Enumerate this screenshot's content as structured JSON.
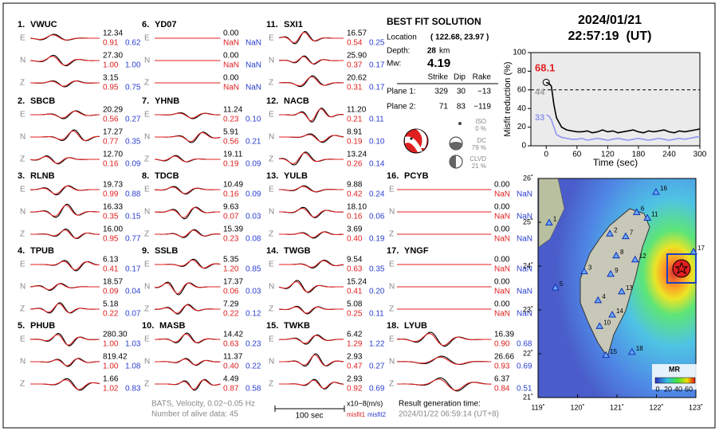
{
  "waveforms": {
    "stations": [
      {
        "number": "1.",
        "name": "VWUC",
        "components": [
          {
            "label": "E",
            "amplitude": "12.34",
            "misfit1": "0.91",
            "misfit2": "0.62"
          },
          {
            "label": "N",
            "amplitude": "27.30",
            "misfit1": "1.00",
            "misfit2": "1.00"
          },
          {
            "label": "Z",
            "amplitude": "3.15",
            "misfit1": "0.95",
            "misfit2": "0.75"
          }
        ]
      },
      {
        "number": "2.",
        "name": "SBCB",
        "components": [
          {
            "label": "E",
            "amplitude": "20.29",
            "misfit1": "0.56",
            "misfit2": "0.27"
          },
          {
            "label": "N",
            "amplitude": "17.27",
            "misfit1": "0.77",
            "misfit2": "0.35"
          },
          {
            "label": "Z",
            "amplitude": "12.70",
            "misfit1": "0.16",
            "misfit2": "0.09"
          }
        ]
      },
      {
        "number": "3.",
        "name": "RLNB",
        "components": [
          {
            "label": "E",
            "amplitude": "19.73",
            "misfit1": "0.99",
            "misfit2": "0.88"
          },
          {
            "label": "N",
            "amplitude": "16.33",
            "misfit1": "0.35",
            "misfit2": "0.15"
          },
          {
            "label": "Z",
            "amplitude": "16.00",
            "misfit1": "0.95",
            "misfit2": "0.77"
          }
        ]
      },
      {
        "number": "4.",
        "name": "TPUB",
        "components": [
          {
            "label": "E",
            "amplitude": "6.13",
            "misfit1": "0.41",
            "misfit2": "0.17"
          },
          {
            "label": "N",
            "amplitude": "18.57",
            "misfit1": "0.09",
            "misfit2": "0.04"
          },
          {
            "label": "Z",
            "amplitude": "5.18",
            "misfit1": "0.22",
            "misfit2": "0.07"
          }
        ]
      },
      {
        "number": "5.",
        "name": "PHUB",
        "components": [
          {
            "label": "E",
            "amplitude": "280.30",
            "misfit1": "1.00",
            "misfit2": "1.03"
          },
          {
            "label": "N",
            "amplitude": "819.42",
            "misfit1": "1.00",
            "misfit2": "1.08"
          },
          {
            "label": "Z",
            "amplitude": "1.66",
            "misfit1": "1.02",
            "misfit2": "0.83"
          }
        ]
      },
      {
        "number": "6.",
        "name": "YD07",
        "components": [
          {
            "label": "E",
            "amplitude": "0.00",
            "misfit1": "NaN",
            "misfit2": "NaN"
          },
          {
            "label": "N",
            "amplitude": "0.00",
            "misfit1": "NaN",
            "misfit2": "NaN"
          },
          {
            "label": "Z",
            "amplitude": "0.00",
            "misfit1": "NaN",
            "misfit2": "NaN"
          }
        ]
      },
      {
        "number": "7.",
        "name": "YHNB",
        "components": [
          {
            "label": "E",
            "amplitude": "11.24",
            "misfit1": "0.23",
            "misfit2": "0.10"
          },
          {
            "label": "N",
            "amplitude": "5.91",
            "misfit1": "0.56",
            "misfit2": "0.21"
          },
          {
            "label": "Z",
            "amplitude": "19.11",
            "misfit1": "0.19",
            "misfit2": "0.09"
          }
        ]
      },
      {
        "number": "8.",
        "name": "TDCB",
        "components": [
          {
            "label": "E",
            "amplitude": "10.49",
            "misfit1": "0.16",
            "misfit2": "0.09"
          },
          {
            "label": "N",
            "amplitude": "9.63",
            "misfit1": "0.07",
            "misfit2": "0.03"
          },
          {
            "label": "Z",
            "amplitude": "15.39",
            "misfit1": "0.23",
            "misfit2": "0.08"
          }
        ]
      },
      {
        "number": "9.",
        "name": "SSLB",
        "components": [
          {
            "label": "E",
            "amplitude": "5.35",
            "misfit1": "1.20",
            "misfit2": "0.85"
          },
          {
            "label": "N",
            "amplitude": "17.37",
            "misfit1": "0.06",
            "misfit2": "0.03"
          },
          {
            "label": "Z",
            "amplitude": "7.29",
            "misfit1": "0.22",
            "misfit2": "0.12"
          }
        ]
      },
      {
        "number": "10.",
        "name": "MASB",
        "components": [
          {
            "label": "E",
            "amplitude": "14.42",
            "misfit1": "0.63",
            "misfit2": "0.23"
          },
          {
            "label": "N",
            "amplitude": "11.37",
            "misfit1": "0.40",
            "misfit2": "0.22"
          },
          {
            "label": "Z",
            "amplitude": "4.49",
            "misfit1": "0.87",
            "misfit2": "0.58"
          }
        ]
      },
      {
        "number": "11.",
        "name": "SXI1",
        "components": [
          {
            "label": "E",
            "amplitude": "16.57",
            "misfit1": "0.54",
            "misfit2": "0.25"
          },
          {
            "label": "N",
            "amplitude": "25.90",
            "misfit1": "0.37",
            "misfit2": "0.17"
          },
          {
            "label": "Z",
            "amplitude": "20.62",
            "misfit1": "0.31",
            "misfit2": "0.17"
          }
        ]
      },
      {
        "number": "12.",
        "name": "NACB",
        "components": [
          {
            "label": "E",
            "amplitude": "11.20",
            "misfit1": "0.21",
            "misfit2": "0.11"
          },
          {
            "label": "N",
            "amplitude": "8.91",
            "misfit1": "0.19",
            "misfit2": "0.10"
          },
          {
            "label": "Z",
            "amplitude": "13.24",
            "misfit1": "0.26",
            "misfit2": "0.14"
          }
        ]
      },
      {
        "number": "13.",
        "name": "YULB",
        "components": [
          {
            "label": "E",
            "amplitude": "9.88",
            "misfit1": "0.42",
            "misfit2": "0.24"
          },
          {
            "label": "N",
            "amplitude": "18.10",
            "misfit1": "0.16",
            "misfit2": "0.06"
          },
          {
            "label": "Z",
            "amplitude": "3.69",
            "misfit1": "0.40",
            "misfit2": "0.19"
          }
        ]
      },
      {
        "number": "14.",
        "name": "TWGB",
        "components": [
          {
            "label": "E",
            "amplitude": "9.54",
            "misfit1": "0.63",
            "misfit2": "0.35"
          },
          {
            "label": "N",
            "amplitude": "15.24",
            "misfit1": "0.41",
            "misfit2": "0.20"
          },
          {
            "label": "Z",
            "amplitude": "5.08",
            "misfit1": "0.25",
            "misfit2": "0.11"
          }
        ]
      },
      {
        "number": "15.",
        "name": "TWKB",
        "components": [
          {
            "label": "E",
            "amplitude": "6.42",
            "misfit1": "1.29",
            "misfit2": "1.22"
          },
          {
            "label": "N",
            "amplitude": "2.93",
            "misfit1": "0.47",
            "misfit2": "0.27"
          },
          {
            "label": "Z",
            "amplitude": "2.93",
            "misfit1": "0.92",
            "misfit2": "0.69"
          }
        ]
      },
      {
        "number": "16.",
        "name": "PCYB",
        "components": [
          {
            "label": "E",
            "amplitude": "0.00",
            "misfit1": "NaN",
            "misfit2": "NaN"
          },
          {
            "label": "N",
            "amplitude": "0.00",
            "misfit1": "NaN",
            "misfit2": "NaN"
          },
          {
            "label": "Z",
            "amplitude": "0.00",
            "misfit1": "NaN",
            "misfit2": "NaN"
          }
        ]
      },
      {
        "number": "17.",
        "name": "YNGF",
        "components": [
          {
            "label": "E",
            "amplitude": "0.00",
            "misfit1": "NaN",
            "misfit2": "NaN"
          },
          {
            "label": "N",
            "amplitude": "0.00",
            "misfit1": "NaN",
            "misfit2": "NaN"
          },
          {
            "label": "Z",
            "amplitude": "0.00",
            "misfit1": "NaN",
            "misfit2": "NaN"
          }
        ]
      },
      {
        "number": "18.",
        "name": "LYUB",
        "components": [
          {
            "label": "E",
            "amplitude": "16.39",
            "misfit1": "0.90",
            "misfit2": "0.68"
          },
          {
            "label": "N",
            "amplitude": "26.66",
            "misfit1": "0.93",
            "misfit2": "0.69"
          },
          {
            "label": "Z",
            "amplitude": "6.37",
            "misfit1": "0.84",
            "misfit2": "0.51"
          }
        ]
      }
    ]
  },
  "solution": {
    "title": "BEST FIT SOLUTION",
    "location_label": "Location",
    "location": "( 122.68, 23.97 )",
    "depth_label": "Depth:",
    "depth": "28",
    "depth_unit": "km",
    "mw_label": "Mw:",
    "mw": "4.19",
    "headers": [
      "Strike",
      "Dip",
      "Rake"
    ],
    "planes": [
      [
        "Plane 1:",
        "329",
        "30",
        "−13"
      ],
      [
        "Plane 2:",
        "71",
        "83",
        "−119"
      ]
    ],
    "components": [
      {
        "name": "ISO",
        "value": "0 %"
      },
      {
        "name": "DC",
        "value": "79 %"
      },
      {
        "name": "CLVD",
        "value": "21 %"
      }
    ]
  },
  "event": {
    "date": "2024/01/21",
    "time": "22:57:19  (UT)"
  },
  "chart_data": {
    "type": "line",
    "xlabel": "Time (sec)",
    "ylabel": "Misfit reduction (%)",
    "xlim": [
      -30,
      300
    ],
    "ylim": [
      0,
      100
    ],
    "xticks": [
      0,
      60,
      120,
      180,
      240,
      300
    ],
    "yticks": [
      0,
      20,
      40,
      60,
      80,
      100
    ],
    "reference_line": 60,
    "x": [
      0,
      5,
      10,
      15,
      20,
      30,
      40,
      50,
      60,
      70,
      80,
      90,
      100,
      110,
      120,
      130,
      140,
      150,
      160,
      170,
      180,
      190,
      200,
      210,
      220,
      230,
      240,
      250,
      260,
      270,
      280,
      290,
      300
    ],
    "series": [
      {
        "color": "#000000",
        "values": [
          68,
          67,
          64,
          44,
          30,
          20,
          17,
          16,
          15,
          15,
          16,
          14,
          15,
          17,
          15,
          16,
          14,
          15,
          16,
          17,
          15,
          14,
          16,
          15,
          16,
          17,
          15,
          14,
          16,
          15,
          16,
          17,
          18
        ]
      },
      {
        "color": "#8f95f0",
        "values": [
          33,
          32,
          28,
          20,
          12,
          9,
          8,
          7,
          7,
          8,
          6,
          7,
          8,
          7,
          6,
          7,
          8,
          7,
          6,
          7,
          8,
          7,
          6,
          7,
          8,
          7,
          6,
          7,
          8,
          7,
          8,
          9,
          10
        ]
      }
    ],
    "annotations": [
      {
        "text": "68.1",
        "value": 68.1,
        "color": "#e02020"
      },
      {
        "text": "44",
        "value": 44,
        "color": "#a0a0a0"
      },
      {
        "text": "33",
        "value": 33,
        "color": "#8f95f0"
      }
    ]
  },
  "map": {
    "xlim": [
      119,
      123
    ],
    "ylim": [
      21,
      26
    ],
    "xticks": [
      {
        "value": 119,
        "label": "119˚"
      },
      {
        "value": 120,
        "label": "120˚"
      },
      {
        "value": 121,
        "label": "121˚"
      },
      {
        "value": 122,
        "label": "122˚"
      },
      {
        "value": 123,
        "label": "123˚"
      }
    ],
    "yticks": [
      {
        "value": 21,
        "label": "21˚"
      },
      {
        "value": 22,
        "label": "22˚"
      },
      {
        "value": 23,
        "label": "23˚"
      },
      {
        "value": 24,
        "label": "24˚"
      },
      {
        "value": 25,
        "label": "25˚"
      },
      {
        "value": 26,
        "label": "26˚"
      }
    ],
    "stations": [
      {
        "label": "1",
        "lon": 119.28,
        "lat": 24.99
      },
      {
        "label": "2",
        "lon": 120.82,
        "lat": 24.74
      },
      {
        "label": "3",
        "lon": 120.17,
        "lat": 23.88
      },
      {
        "label": "4",
        "lon": 120.52,
        "lat": 23.22
      },
      {
        "label": "5",
        "lon": 119.44,
        "lat": 23.51
      },
      {
        "label": "6",
        "lon": 121.5,
        "lat": 25.23
      },
      {
        "label": "7",
        "lon": 121.22,
        "lat": 24.68
      },
      {
        "label": "8",
        "lon": 120.98,
        "lat": 24.24
      },
      {
        "label": "9",
        "lon": 120.84,
        "lat": 23.82
      },
      {
        "label": "10",
        "lon": 120.56,
        "lat": 22.63
      },
      {
        "label": "11",
        "lon": 121.77,
        "lat": 25.1
      },
      {
        "label": "12",
        "lon": 121.46,
        "lat": 24.15
      },
      {
        "label": "13",
        "lon": 121.12,
        "lat": 23.42
      },
      {
        "label": "14",
        "lon": 120.88,
        "lat": 22.89
      },
      {
        "label": "15",
        "lon": 120.72,
        "lat": 21.97
      },
      {
        "label": "16",
        "lon": 121.99,
        "lat": 25.69
      },
      {
        "label": "17",
        "lon": 122.94,
        "lat": 24.33
      },
      {
        "label": "18",
        "lon": 121.38,
        "lat": 22.04
      }
    ],
    "colorbar": {
      "title": "MR",
      "ticks": [
        0,
        20,
        40,
        60
      ]
    }
  },
  "footer": {
    "network": "BATS, Velocity, 0.02~0.05 Hz",
    "alive": "Number of alive data: 45",
    "scale": "100 sec",
    "unit": "x10−8(m/s)",
    "misfit1": "misfit1",
    "misfit2": "misfit2",
    "result_label": "Result generation time:",
    "result_time": "2024/01/22 06:59:14 (UT+8)"
  }
}
